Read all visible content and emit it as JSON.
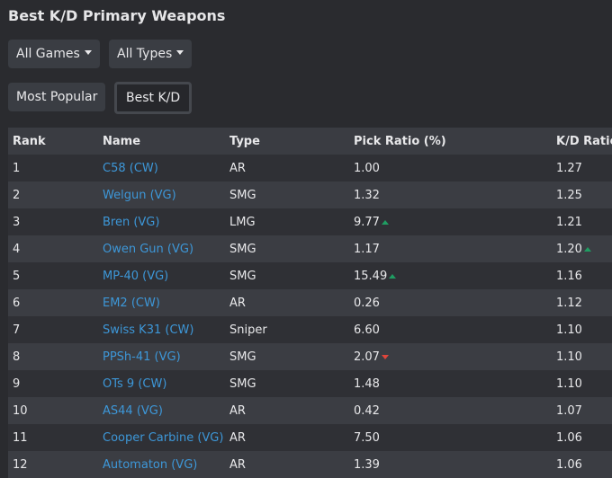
{
  "title": "Best K/D Primary Weapons",
  "filters": {
    "games": "All Games",
    "types": "All Types"
  },
  "views": {
    "popular": "Most Popular",
    "kd": "Best K/D",
    "active": "kd"
  },
  "colors": {
    "link": "#3d97d8",
    "up": "#1f9d62",
    "down": "#e0453b"
  },
  "table": {
    "headers": [
      "Rank",
      "Name",
      "Type",
      "Pick Ratio (%)",
      "K/D Ratio"
    ],
    "rows": [
      {
        "rank": "1",
        "name": "C58 (CW)",
        "type": "AR",
        "pick": "1.00",
        "kd": "1.27"
      },
      {
        "rank": "2",
        "name": "Welgun (VG)",
        "type": "SMG",
        "pick": "1.32",
        "kd": "1.25"
      },
      {
        "rank": "3",
        "name": "Bren (VG)",
        "type": "LMG",
        "pick": "9.77",
        "pick_trend": "up",
        "kd": "1.21"
      },
      {
        "rank": "4",
        "name": "Owen Gun (VG)",
        "type": "SMG",
        "pick": "1.17",
        "kd": "1.20",
        "kd_trend": "up"
      },
      {
        "rank": "5",
        "name": "MP-40 (VG)",
        "type": "SMG",
        "pick": "15.49",
        "pick_trend": "up",
        "kd": "1.16"
      },
      {
        "rank": "6",
        "name": "EM2 (CW)",
        "type": "AR",
        "pick": "0.26",
        "kd": "1.12"
      },
      {
        "rank": "7",
        "name": "Swiss K31 (CW)",
        "type": "Sniper",
        "pick": "6.60",
        "kd": "1.10"
      },
      {
        "rank": "8",
        "name": "PPSh-41 (VG)",
        "type": "SMG",
        "pick": "2.07",
        "pick_trend": "down",
        "kd": "1.10"
      },
      {
        "rank": "9",
        "name": "OTs 9 (CW)",
        "type": "SMG",
        "pick": "1.48",
        "kd": "1.10"
      },
      {
        "rank": "10",
        "name": "AS44 (VG)",
        "type": "AR",
        "pick": "0.42",
        "kd": "1.07"
      },
      {
        "rank": "11",
        "name": "Cooper Carbine (VG)",
        "type": "AR",
        "pick": "7.50",
        "kd": "1.06"
      },
      {
        "rank": "12",
        "name": "Automaton (VG)",
        "type": "AR",
        "pick": "1.39",
        "kd": "1.06"
      }
    ]
  }
}
